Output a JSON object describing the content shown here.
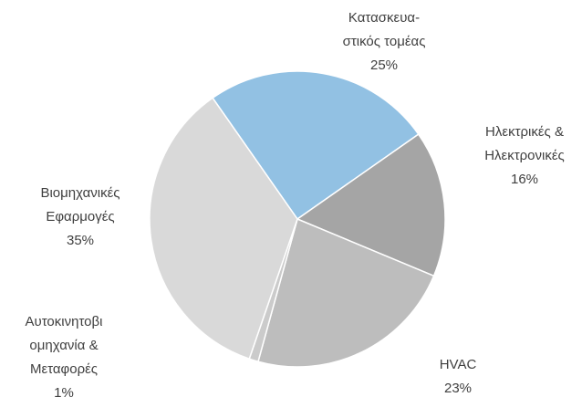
{
  "chart_data": {
    "type": "pie",
    "categories": [
      [
        "Κατασκευα-",
        "στικός τομέας"
      ],
      [
        "Ηλεκτρικές &",
        "Ηλεκτρονικές"
      ],
      [
        "HVAC"
      ],
      [
        "Αυτοκινητοβι",
        "ομηχανία &",
        "Μεταφορές"
      ],
      [
        "Βιομηχανικές",
        "Εφαρμογές"
      ]
    ],
    "values": [
      25,
      16,
      23,
      1,
      35
    ],
    "value_labels": [
      "25%",
      "16%",
      "23%",
      "1%",
      "35%"
    ],
    "colors": [
      "#92c1e3",
      "#a5a5a5",
      "#bdbdbd",
      "#cbcbcb",
      "#d9d9d9"
    ]
  }
}
